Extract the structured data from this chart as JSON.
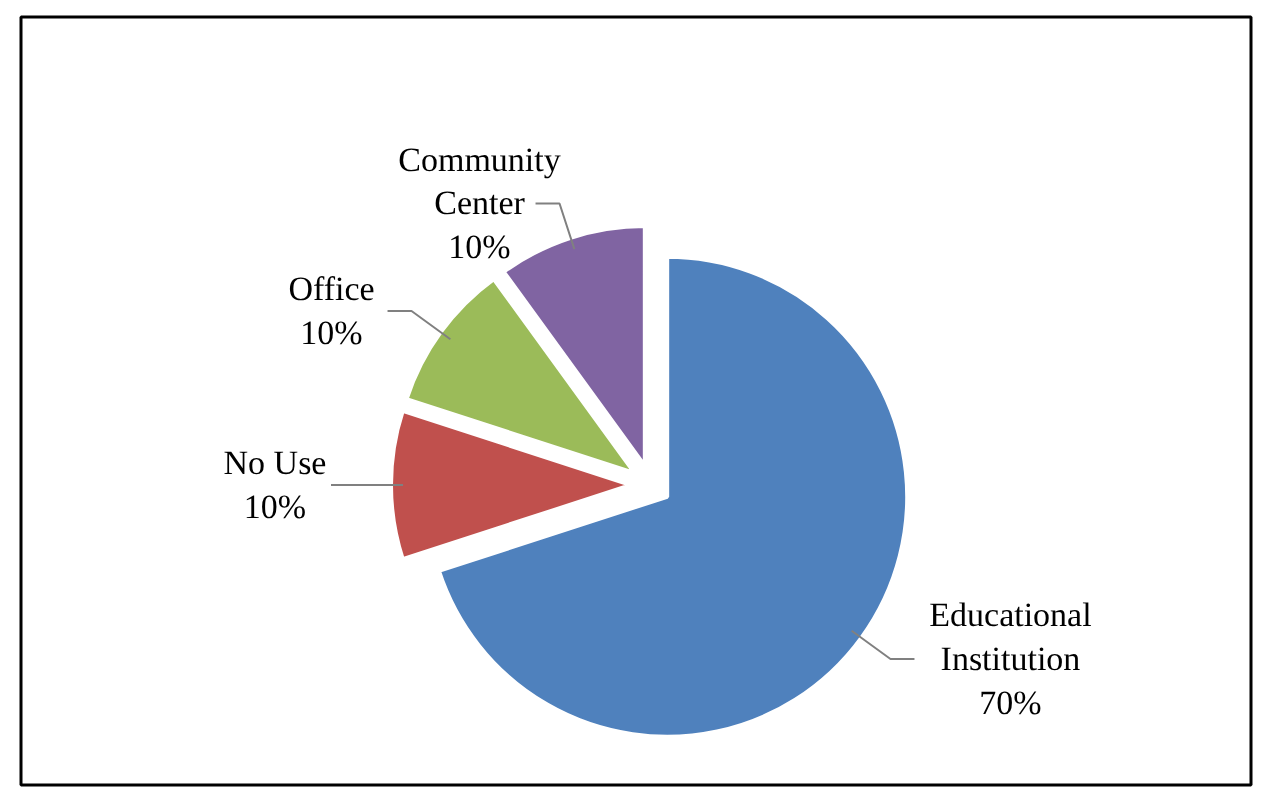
{
  "chart_data": {
    "type": "pie",
    "categories": [
      "Educational Institution",
      "No Use",
      "Office",
      "Community Center"
    ],
    "values": [
      70,
      10,
      10,
      10
    ],
    "colors": [
      "#4f81bd",
      "#c0504d",
      "#9bbb59",
      "#8064a2"
    ],
    "value_labels": [
      "70%",
      "10%",
      "10%",
      "10%"
    ]
  }
}
